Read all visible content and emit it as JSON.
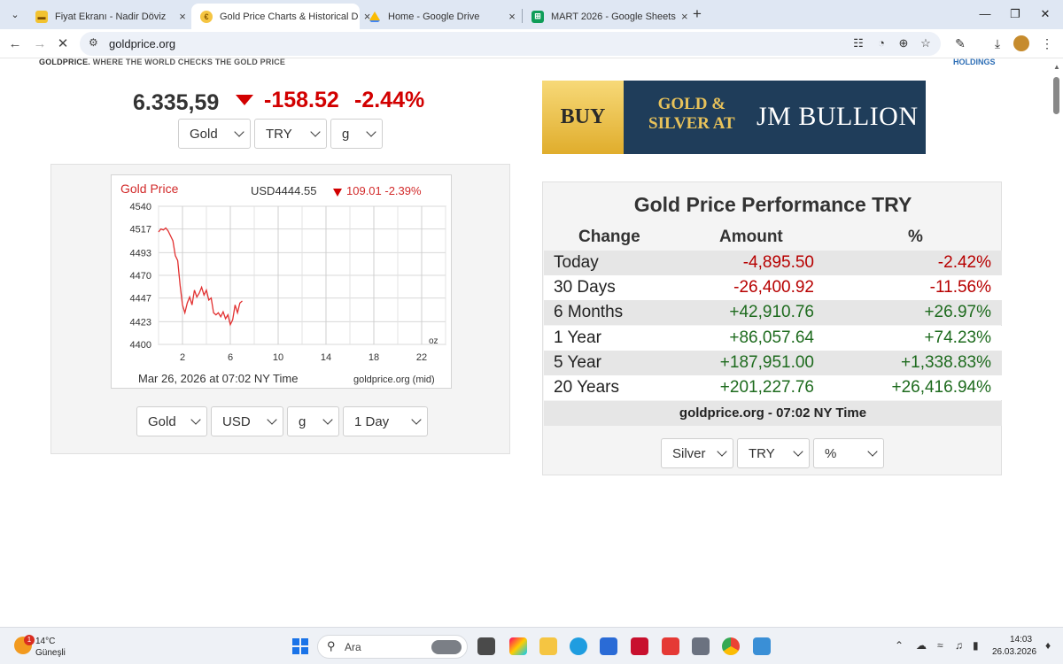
{
  "browser": {
    "tabs": [
      {
        "title": "Fiyat Ekranı - Nadir Döviz",
        "active": false
      },
      {
        "title": "Gold Price Charts & Historical D",
        "active": true
      },
      {
        "title": "Home - Google Drive",
        "active": false
      },
      {
        "title": "MART 2026 - Google Sheets",
        "active": false
      }
    ],
    "url": "goldprice.org"
  },
  "site": {
    "tagline_brand": "GOLDPRICE.",
    "tagline_rest": " WHERE THE WORLD CHECKS THE GOLD PRICE",
    "holdings": "HOLDINGS"
  },
  "ticker": {
    "price": "6.335,59",
    "change": "-158.52",
    "change_pct": "-2.44%",
    "selects": {
      "metal": "Gold",
      "currency": "TRY",
      "unit": "g"
    }
  },
  "chart_data": {
    "type": "line",
    "title": "Gold Price",
    "quote": "USD4444.55",
    "quote_change": "109.01 -2.39%",
    "unit_label": "oz",
    "footer_left": "Mar 26, 2026 at 07:02 NY Time",
    "footer_right": "goldprice.org (mid)",
    "x_ticks": [
      2,
      6,
      10,
      14,
      18,
      22
    ],
    "y_ticks": [
      4400,
      4423,
      4447,
      4470,
      4493,
      4517,
      4540
    ],
    "xlim": [
      0,
      24
    ],
    "ylim": [
      4400,
      4540
    ],
    "grid": true,
    "series": [
      {
        "color": "#e23030",
        "x": [
          0.0,
          0.2,
          0.4,
          0.6,
          0.8,
          1.0,
          1.2,
          1.4,
          1.6,
          1.8,
          2.0,
          2.2,
          2.4,
          2.6,
          2.8,
          3.0,
          3.2,
          3.4,
          3.6,
          3.8,
          4.0,
          4.2,
          4.4,
          4.6,
          4.8,
          5.0,
          5.2,
          5.4,
          5.6,
          5.8,
          6.0,
          6.2,
          6.4,
          6.6,
          6.8,
          7.0
        ],
        "y": [
          4514,
          4517,
          4516,
          4518,
          4515,
          4510,
          4505,
          4490,
          4485,
          4460,
          4440,
          4432,
          4442,
          4448,
          4440,
          4455,
          4448,
          4452,
          4458,
          4450,
          4455,
          4445,
          4447,
          4432,
          4430,
          4432,
          4428,
          4433,
          4426,
          4430,
          4420,
          4425,
          4440,
          4432,
          4442,
          4444
        ]
      }
    ],
    "selects": {
      "metal": "Gold",
      "currency": "USD",
      "unit": "g",
      "range": "1 Day"
    }
  },
  "ad": {
    "buy": "BUY",
    "line1": "GOLD &",
    "line2": "SILVER AT",
    "brand": "JM BULLION"
  },
  "performance": {
    "title": "Gold Price Performance TRY",
    "headers": {
      "change": "Change",
      "amount": "Amount",
      "pct": "%"
    },
    "rows": [
      {
        "label": "Today",
        "amount": "-4,895.50",
        "pct": "-2.42%",
        "sign": "neg"
      },
      {
        "label": "30 Days",
        "amount": "-26,400.92",
        "pct": "-11.56%",
        "sign": "neg"
      },
      {
        "label": "6 Months",
        "amount": "+42,910.76",
        "pct": "+26.97%",
        "sign": "pos"
      },
      {
        "label": "1 Year",
        "amount": "+86,057.64",
        "pct": "+74.23%",
        "sign": "pos"
      },
      {
        "label": "5 Year",
        "amount": "+187,951.00",
        "pct": "+1,338.83%",
        "sign": "pos"
      },
      {
        "label": "20 Years",
        "amount": "+201,227.76",
        "pct": "+26,416.94%",
        "sign": "pos"
      }
    ],
    "footer": "goldprice.org - 07:02 NY Time",
    "selects": {
      "metal": "Silver",
      "currency": "TRY",
      "mode": "%"
    }
  },
  "taskbar": {
    "temp": "14°C",
    "weather": "Güneşli",
    "weather_badge": "1",
    "search_placeholder": "Ara",
    "time": "14:03",
    "date": "26.03.2026"
  }
}
